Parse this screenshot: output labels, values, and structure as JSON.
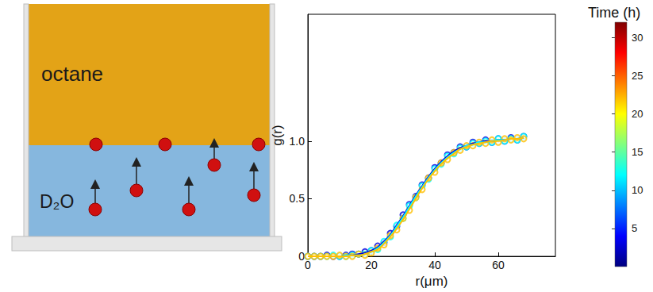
{
  "diagram": {
    "labels": [
      "octane",
      "D₂O"
    ]
  },
  "chart_data": {
    "type": "scatter",
    "x": [
      0,
      2,
      4,
      6,
      8,
      10,
      12,
      14,
      16,
      18,
      20,
      22,
      24,
      26,
      28,
      30,
      32,
      34,
      36,
      38,
      40,
      42,
      44,
      46,
      48,
      50,
      52,
      54,
      56,
      58,
      60,
      62,
      64,
      66,
      68
    ],
    "series": [
      {
        "time": 3,
        "values": [
          0,
          0,
          0,
          0.01,
          0,
          0,
          0.01,
          0.02,
          0.02,
          0.04,
          0.05,
          0.09,
          0.12,
          0.2,
          0.26,
          0.36,
          0.45,
          0.52,
          0.62,
          0.68,
          0.77,
          0.81,
          0.88,
          0.9,
          0.95,
          0.95,
          0.99,
          0.98,
          1.01,
          0.99,
          1.02,
          1.0,
          1.03,
          1.01,
          1.04
        ],
        "fit": [
          0,
          0,
          0,
          0,
          0,
          0,
          0.01,
          0.01,
          0.02,
          0.03,
          0.05,
          0.08,
          0.13,
          0.19,
          0.27,
          0.35,
          0.44,
          0.53,
          0.61,
          0.69,
          0.76,
          0.82,
          0.87,
          0.91,
          0.94,
          0.96,
          0.98,
          0.99,
          1.0,
          1.0,
          1.01,
          1.01,
          1.02,
          1.02,
          1.03
        ]
      },
      {
        "time": 12,
        "values": [
          0,
          0,
          0,
          0,
          0.01,
          0,
          0,
          0.01,
          0.02,
          0.02,
          0.05,
          0.06,
          0.13,
          0.17,
          0.27,
          0.33,
          0.44,
          0.51,
          0.61,
          0.67,
          0.76,
          0.8,
          0.87,
          0.89,
          0.94,
          0.95,
          0.98,
          0.98,
          1.0,
          0.99,
          1.02,
          1.0,
          1.02,
          1.01,
          1.04
        ],
        "fit": [
          0,
          0,
          0,
          0,
          0,
          0,
          0.01,
          0.01,
          0.01,
          0.02,
          0.04,
          0.07,
          0.12,
          0.18,
          0.26,
          0.34,
          0.43,
          0.52,
          0.6,
          0.68,
          0.75,
          0.81,
          0.86,
          0.9,
          0.93,
          0.96,
          0.97,
          0.99,
          0.99,
          1.0,
          1.01,
          1.01,
          1.02,
          1.02,
          1.03
        ]
      },
      {
        "time": 22,
        "values": [
          0,
          0,
          0,
          0,
          0,
          0.01,
          0,
          0,
          0.02,
          0.01,
          0.03,
          0.07,
          0.1,
          0.18,
          0.23,
          0.33,
          0.4,
          0.51,
          0.58,
          0.68,
          0.73,
          0.81,
          0.84,
          0.9,
          0.92,
          0.96,
          0.96,
          0.99,
          0.98,
          1.01,
          0.99,
          1.02,
          1.01,
          1.03,
          1.02
        ],
        "fit": [
          0,
          0,
          0,
          0,
          0,
          0,
          0,
          0.01,
          0.01,
          0.02,
          0.04,
          0.06,
          0.11,
          0.17,
          0.24,
          0.32,
          0.41,
          0.5,
          0.59,
          0.67,
          0.74,
          0.8,
          0.85,
          0.89,
          0.93,
          0.95,
          0.97,
          0.98,
          0.99,
          1.0,
          1.0,
          1.01,
          1.02,
          1.02,
          1.03
        ]
      }
    ],
    "x_label": "r(μm)",
    "y_label": "g(r)",
    "xlim": [
      0,
      78
    ],
    "xticks": [
      0,
      20,
      40,
      60
    ],
    "ylim": [
      0,
      2.1
    ],
    "yticks": [
      0,
      0.5,
      {
        "value": 1,
        "label": "1.0"
      }
    ],
    "marker": "circle",
    "line_style": "solid",
    "grid": false,
    "colorbar": {
      "title": "Time (h)",
      "range": [
        0,
        32
      ],
      "ticks": [
        5,
        10,
        15,
        20,
        25,
        30
      ]
    }
  }
}
